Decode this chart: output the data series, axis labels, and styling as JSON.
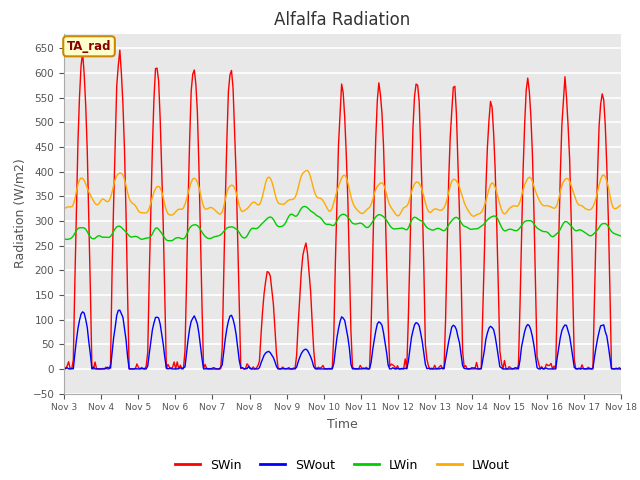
{
  "title": "Alfalfa Radiation",
  "xlabel": "Time",
  "ylabel": "Radiation (W/m2)",
  "ylim": [
    -50,
    680
  ],
  "yticks": [
    -50,
    0,
    50,
    100,
    150,
    200,
    250,
    300,
    350,
    400,
    450,
    500,
    550,
    600,
    650
  ],
  "annotation_text": "TA_rad",
  "annotation_bg": "#ffffcc",
  "annotation_border": "#cc8800",
  "colors": {
    "SWin": "#ff0000",
    "SWout": "#0000ff",
    "LWin": "#00cc00",
    "LWout": "#ffaa00"
  },
  "legend_labels": [
    "SWin",
    "SWout",
    "LWin",
    "LWout"
  ],
  "bg_color": "#ffffff",
  "plot_bg_color": "#e8e8e8",
  "n_days": 15,
  "start_day": 3,
  "line_width": 1.0,
  "swin_peaks": [
    640,
    645,
    615,
    615,
    605,
    200,
    250,
    560,
    575,
    590,
    565,
    540,
    585,
    575,
    570
  ],
  "swout_peaks": [
    115,
    120,
    105,
    108,
    108,
    35,
    40,
    105,
    95,
    95,
    88,
    88,
    90,
    90,
    90
  ],
  "lwin_daily_bases": [
    265,
    265,
    260,
    265,
    268,
    285,
    305,
    290,
    285,
    285,
    285,
    285,
    280,
    275,
    270
  ],
  "lwout_daily_bases": [
    330,
    340,
    310,
    320,
    315,
    330,
    345,
    330,
    320,
    320,
    320,
    315,
    330,
    330,
    325
  ]
}
